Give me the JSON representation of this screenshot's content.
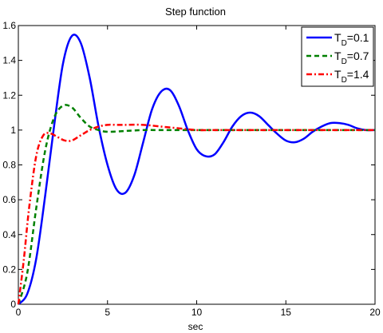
{
  "chart_data": {
    "type": "line",
    "title": "Step function",
    "xlabel": "sec",
    "ylabel": "",
    "xlim": [
      0,
      20
    ],
    "ylim": [
      0,
      1.6
    ],
    "xticks": [
      0,
      5,
      10,
      15,
      20
    ],
    "xtick_labels": [
      "0",
      "5",
      "10",
      "15",
      "20"
    ],
    "yticks": [
      0,
      0.2,
      0.4,
      0.6,
      0.8,
      1,
      1.2,
      1.4,
      1.6
    ],
    "ytick_labels": [
      "0",
      "0.2",
      "0.4",
      "0.6",
      "0.8",
      "1",
      "1.2",
      "1.4",
      "1.6"
    ],
    "grid": false,
    "legend_position": "top-right",
    "series": [
      {
        "name": "T_D=0.1",
        "legend_main": "T",
        "legend_sub": "D",
        "legend_rest": "=0.1",
        "color": "#0000ff",
        "dash": "solid",
        "x": [
          0,
          0.5,
          1,
          1.5,
          2,
          2.5,
          3,
          3.5,
          4,
          4.5,
          5,
          5.5,
          6,
          6.5,
          7,
          7.5,
          8,
          8.5,
          9,
          9.5,
          10,
          10.5,
          11,
          11.5,
          12,
          12.5,
          13,
          13.5,
          14,
          14.5,
          15,
          15.5,
          16,
          16.5,
          17,
          17.5,
          18,
          18.5,
          19,
          19.5,
          20
        ],
        "y": [
          0,
          0.06,
          0.26,
          0.62,
          1.02,
          1.38,
          1.54,
          1.5,
          1.3,
          1.02,
          0.8,
          0.66,
          0.64,
          0.74,
          0.93,
          1.12,
          1.22,
          1.23,
          1.14,
          1.0,
          0.89,
          0.85,
          0.86,
          0.93,
          1.02,
          1.08,
          1.1,
          1.08,
          1.03,
          0.98,
          0.94,
          0.93,
          0.95,
          0.99,
          1.02,
          1.04,
          1.04,
          1.03,
          1.01,
          1.0,
          1.0
        ]
      },
      {
        "name": "T_D=0.7",
        "legend_main": "T",
        "legend_sub": "D",
        "legend_rest": "=0.7",
        "color": "#008000",
        "dash": "dashed",
        "x": [
          0,
          0.5,
          1,
          1.5,
          2,
          2.5,
          3,
          3.5,
          4,
          4.5,
          5,
          6,
          7,
          8,
          9,
          10,
          12,
          14,
          16,
          18,
          20
        ],
        "y": [
          0,
          0.18,
          0.55,
          0.88,
          1.07,
          1.14,
          1.13,
          1.07,
          1.02,
          1.0,
          0.99,
          0.995,
          1.0,
          1.0,
          1.0,
          1.0,
          1.0,
          1.0,
          1.0,
          1.0,
          1.0
        ]
      },
      {
        "name": "T_D=1.4",
        "legend_main": "T",
        "legend_sub": "D",
        "legend_rest": "=1.4",
        "color": "#ff0000",
        "dash": "dashdot",
        "x": [
          0,
          0.3,
          0.6,
          1,
          1.4,
          1.8,
          2.2,
          2.6,
          3,
          3.5,
          4,
          4.5,
          5,
          5.5,
          6,
          7,
          8,
          9,
          10,
          11,
          12,
          13,
          14,
          15,
          16,
          18,
          20
        ],
        "y": [
          0,
          0.25,
          0.55,
          0.85,
          0.97,
          0.98,
          0.96,
          0.94,
          0.94,
          0.97,
          1.0,
          1.02,
          1.03,
          1.03,
          1.03,
          1.03,
          1.02,
          1.01,
          1.0,
          1.0,
          1.0,
          1.0,
          1.0,
          1.0,
          1.0,
          1.0,
          1.0
        ]
      }
    ]
  }
}
